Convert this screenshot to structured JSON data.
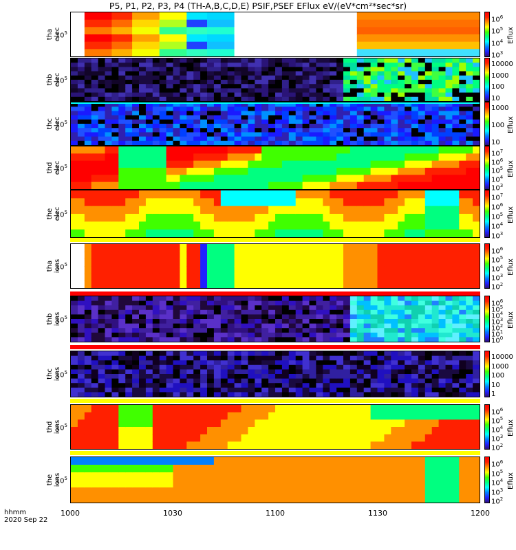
{
  "title": "P5, P1, P2, P3, P4 (TH-A,B,C,D,E) PSIF,PSEF EFlux eV/(eV*cm²*sec*sr)",
  "x_axis": {
    "label_format": "hhmm",
    "label_date": "2020 Sep 22",
    "ticks": [
      "1000",
      "1030",
      "1100",
      "1130",
      "1200"
    ]
  },
  "chart_data": {
    "type": "heatmap",
    "x_range": [
      "10:00",
      "12:00"
    ],
    "x_ticks": [
      "1000",
      "1030",
      "1100",
      "1130",
      "1200"
    ],
    "panels": [
      {
        "id": "tha-elec",
        "ylabel": [
          "tha",
          "elec"
        ],
        "yticks": [
          "10",
          "5"
        ],
        "cbar_ticks": [
          [
            "10",
            "6"
          ],
          [
            "10",
            "5"
          ],
          [
            "10",
            "4"
          ],
          [
            "10",
            "3"
          ]
        ],
        "cbar_unit": "Eflux",
        "bg": "#ffffff",
        "blocks": [
          [
            "#ff0000",
            "#ff2a00",
            "#ff7a00"
          ],
          [
            "#ff2a00",
            "#ff6a00",
            "#ffb000"
          ],
          [
            "#ffa000",
            "#ffd800",
            "#f5ff00"
          ],
          [
            "#ffff00",
            "#b0ff20",
            "#30ff90"
          ],
          [
            "#00e8ff",
            "#2040ff",
            "#30ffc0"
          ],
          [
            "#00d8ff",
            "#10c0ff",
            "#20ffd0"
          ]
        ],
        "gap": [
          0.39,
          0.7
        ],
        "right": [
          "#ff8800",
          "#ff7000",
          "#ff6000",
          "#ff9000",
          "#ffc000",
          "#40e0ff"
        ]
      },
      {
        "id": "thb-elec",
        "ylabel": [
          "thb",
          "elec"
        ],
        "yticks": [
          "10",
          "5"
        ],
        "cbar_ticks": [
          [
            "10000",
            ""
          ],
          [
            "1000",
            ""
          ],
          [
            "100",
            ""
          ],
          [
            "10",
            ""
          ]
        ],
        "cbar_unit": "",
        "style": "noise",
        "noise": [
          "#1a0a40",
          "#30208a",
          "#000000",
          "#2a1478",
          "#4030b0",
          "#120528"
        ],
        "bright_from": 0.66,
        "bright": [
          "#00ff80",
          "#40ff40",
          "#00e0a0",
          "#a0ff00",
          "#000000",
          "#20c0ff"
        ]
      },
      {
        "id": "thc-elec",
        "ylabel": [
          "thc",
          "elec"
        ],
        "yticks": [
          "10",
          "5"
        ],
        "cbar_ticks": [
          [
            "1000",
            ""
          ],
          [
            "100",
            ""
          ],
          [
            "10",
            ""
          ]
        ],
        "cbar_unit": "Eflux",
        "style": "noise",
        "noise": [
          "#1a1aff",
          "#0040ff",
          "#000000",
          "#2050ff",
          "#3020b0",
          "#0090ff"
        ]
      },
      {
        "id": "thd-elec",
        "ylabel": [
          "thd",
          "elec"
        ],
        "yticks": [
          "10",
          "5"
        ],
        "cbar_ticks": [
          [
            "10",
            "7"
          ],
          [
            "10",
            "6"
          ],
          [
            "10",
            "5"
          ],
          [
            "10",
            "4"
          ],
          [
            "10",
            "3"
          ]
        ],
        "cbar_unit": "Eflux"
      },
      {
        "id": "the-elec",
        "ylabel": [
          "the",
          "elec"
        ],
        "yticks": [
          "10",
          "5"
        ],
        "cbar_ticks": [
          [
            "10",
            "7"
          ],
          [
            "10",
            "6"
          ],
          [
            "10",
            "5"
          ],
          [
            "10",
            "4"
          ],
          [
            "10",
            "3"
          ]
        ],
        "cbar_unit": "Eflux"
      },
      {
        "id": "tha-ions",
        "ylabel": [
          "tha",
          "ions"
        ],
        "yticks": [
          "10",
          "5"
        ],
        "cbar_ticks": [
          [
            "10",
            "6"
          ],
          [
            "10",
            "5"
          ],
          [
            "10",
            "4"
          ],
          [
            "10",
            "3"
          ],
          [
            "10",
            "2"
          ]
        ],
        "cbar_unit": "Eflux"
      },
      {
        "id": "thb-ions",
        "ylabel": [
          "thb",
          "ions"
        ],
        "yticks": [
          "10",
          "5"
        ],
        "cbar_ticks": [
          [
            "10",
            "6"
          ],
          [
            "10",
            "5"
          ],
          [
            "10",
            "4"
          ],
          [
            "10",
            "3"
          ],
          [
            "10",
            "2"
          ],
          [
            "10",
            "1"
          ],
          [
            "10",
            "0"
          ]
        ],
        "cbar_unit": "Eflux",
        "style": "noise",
        "noise": [
          "#4020a0",
          "#3010c0",
          "#20083a",
          "#5a30c8",
          "#301080",
          "#000000"
        ],
        "bright_from": 0.67,
        "bright": [
          "#20e8d0",
          "#00c0ff",
          "#40ffe0",
          "#2080ff",
          "#10d0b0",
          "#60f0ff"
        ]
      },
      {
        "id": "thc-ions",
        "ylabel": [
          "thc",
          "ions"
        ],
        "yticks": [
          "10",
          "5"
        ],
        "cbar_ticks": [
          [
            "10000",
            ""
          ],
          [
            "1000",
            ""
          ],
          [
            "100",
            ""
          ],
          [
            "10",
            ""
          ],
          [
            "1",
            ""
          ]
        ],
        "cbar_unit": "",
        "style": "noise",
        "noise": [
          "#1a0a40",
          "#3020a0",
          "#000000",
          "#2010c0",
          "#4030d0",
          "#100020"
        ]
      },
      {
        "id": "thd-ions",
        "ylabel": [
          "thd",
          "ions"
        ],
        "yticks": [
          "10",
          "5"
        ],
        "cbar_ticks": [
          [
            "10",
            "6"
          ],
          [
            "10",
            "5"
          ],
          [
            "10",
            "4"
          ],
          [
            "10",
            "3"
          ],
          [
            "10",
            "2"
          ]
        ],
        "cbar_unit": "Eflux"
      },
      {
        "id": "the-ions",
        "ylabel": [
          "the",
          "ions"
        ],
        "yticks": [
          "10",
          "5"
        ],
        "cbar_ticks": [
          [
            "10",
            "6"
          ],
          [
            "10",
            "5"
          ],
          [
            "10",
            "4"
          ],
          [
            "10",
            "3"
          ],
          [
            "10",
            "2"
          ]
        ],
        "cbar_unit": "Eflux"
      }
    ],
    "colors": {
      "palette": [
        "#000000",
        "#30107a",
        "#2020ff",
        "#0080ff",
        "#00ffff",
        "#00ff80",
        "#40ff00",
        "#ffff00",
        "#ff9000",
        "#ff2000",
        "#ff0000"
      ],
      "flag_red": "#ff0000",
      "flag_yellow": "#ffff00",
      "thc_elec_line": "#00ffff"
    }
  }
}
